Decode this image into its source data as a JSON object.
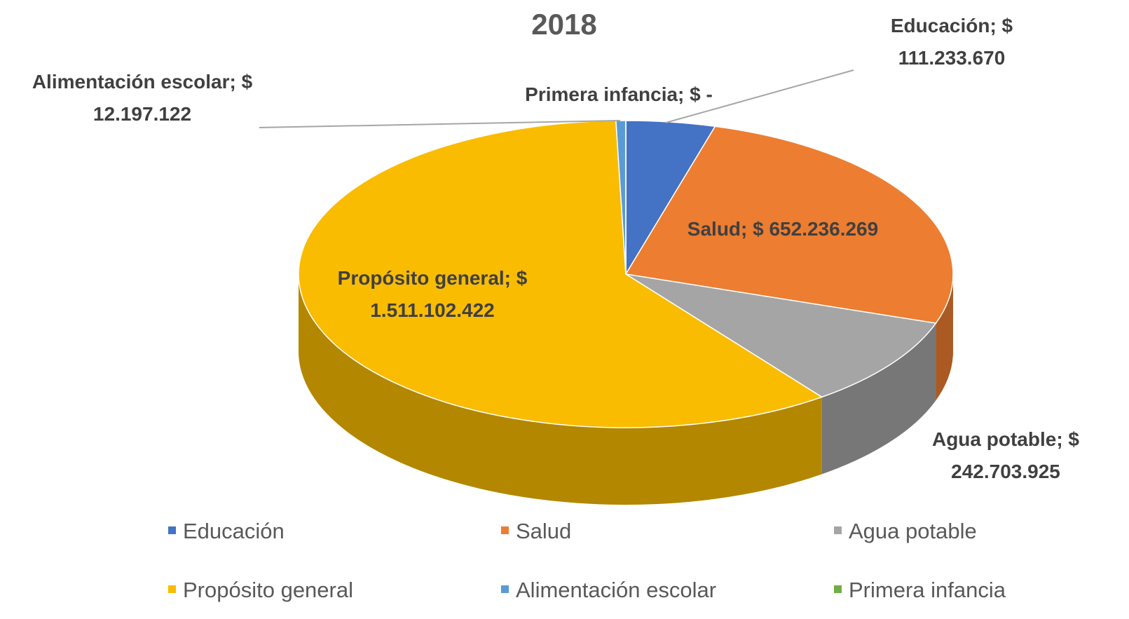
{
  "chart_data": {
    "type": "pie",
    "title": "2018",
    "categories": [
      "Educación",
      "Salud",
      "Agua potable",
      "Propósito general",
      "Alimentación escolar",
      "Primera infancia"
    ],
    "values": [
      111233670,
      652236269,
      242703925,
      1511102422,
      12197122,
      0
    ],
    "value_labels": [
      "Educación; $ 111.233.670",
      "Salud; $ 652.236.269",
      "Agua potable; $ 242.703.925",
      "Propósito general; $ 1.511.102.422",
      "Alimentación escolar; $ 12.197.122",
      "Primera infancia; $ -"
    ],
    "colors": [
      "#4472c4",
      "#ed7d31",
      "#a5a5a5",
      "#f9bc00",
      "#5b9bd5",
      "#70ad47"
    ],
    "legend": "bottom"
  }
}
